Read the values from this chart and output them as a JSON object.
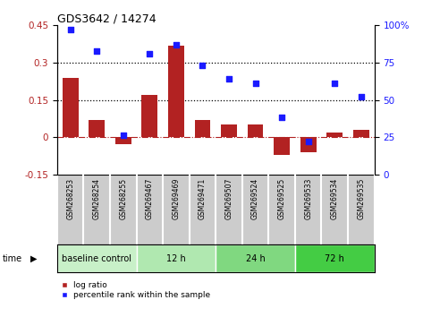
{
  "title": "GDS3642 / 14274",
  "categories": [
    "GSM268253",
    "GSM268254",
    "GSM268255",
    "GSM269467",
    "GSM269469",
    "GSM269471",
    "GSM269507",
    "GSM269524",
    "GSM269525",
    "GSM269533",
    "GSM269534",
    "GSM269535"
  ],
  "log_ratio": [
    0.24,
    0.07,
    -0.03,
    0.17,
    0.37,
    0.07,
    0.05,
    0.05,
    -0.07,
    -0.06,
    0.02,
    0.03
  ],
  "percentile_rank": [
    97,
    83,
    26,
    81,
    87,
    73,
    64,
    61,
    38,
    22,
    61,
    52
  ],
  "bar_color": "#b22222",
  "dot_color": "#1a1aff",
  "ylim_left": [
    -0.15,
    0.45
  ],
  "ylim_right": [
    0,
    100
  ],
  "yticks_left": [
    -0.15,
    0.0,
    0.15,
    0.3,
    0.45
  ],
  "yticks_right": [
    0,
    25,
    50,
    75,
    100
  ],
  "hlines": [
    0.15,
    0.3
  ],
  "groups": [
    {
      "label": "baseline control",
      "start": 0,
      "end": 3,
      "color": "#c8f0c8"
    },
    {
      "label": "12 h",
      "start": 3,
      "end": 6,
      "color": "#b0e8b0"
    },
    {
      "label": "24 h",
      "start": 6,
      "end": 9,
      "color": "#80d880"
    },
    {
      "label": "72 h",
      "start": 9,
      "end": 12,
      "color": "#44cc44"
    }
  ],
  "xtick_bg": "#cccccc",
  "xtick_border": "#ffffff",
  "time_label": "time",
  "legend_bar_label": "log ratio",
  "legend_dot_label": "percentile rank within the sample"
}
